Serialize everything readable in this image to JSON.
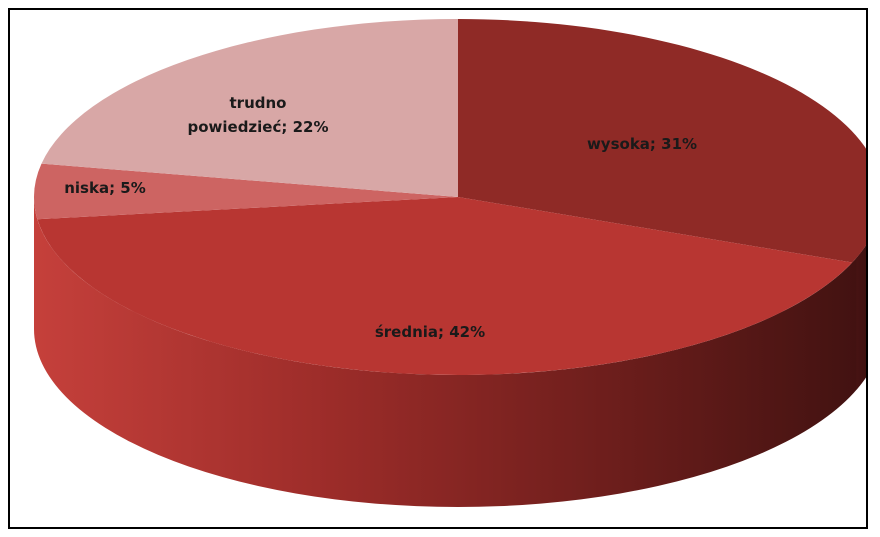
{
  "chart_data": {
    "type": "pie",
    "title": "",
    "slices": [
      {
        "label": "wysoka; 31%",
        "value": 31,
        "color": "#8f2a26"
      },
      {
        "label": "średnia; 42%",
        "value": 42,
        "color": "#b83632"
      },
      {
        "label": "niska; 5%",
        "value": 5,
        "color": "#cd6462"
      },
      {
        "label": "trudno powiedzieć; 22%",
        "value": 22,
        "color": "#d8a7a6"
      }
    ]
  }
}
